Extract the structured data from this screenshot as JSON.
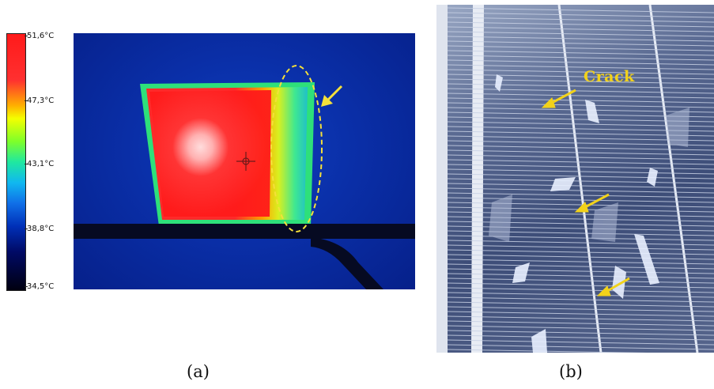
{
  "panel_a": {
    "caption": "(a)",
    "scale_labels": [
      "51,6°C",
      "47,3°C",
      "43,1°C",
      "38,8°C",
      "34,5°C"
    ],
    "colors": {
      "hot": "#ff2020",
      "background": "#0a2fa8",
      "annotation": "#f5e03a"
    }
  },
  "panel_b": {
    "caption": "(b)",
    "crack_label": "Crack",
    "colors": {
      "arrow": "#f2d21a",
      "cell": "#4a5a86"
    }
  }
}
